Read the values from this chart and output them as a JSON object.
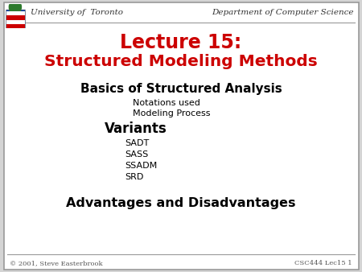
{
  "bg_color": "#d4d4d4",
  "slide_bg": "#ffffff",
  "border_color": "#999999",
  "header_line_color": "#999999",
  "univ_text": "University of  Toronto",
  "dept_text": "Department of Computer Science",
  "title_line1": "Lecture 15:",
  "title_line2": "Structured Modeling Methods",
  "title_color": "#cc0000",
  "heading1": "Basics of Structured Analysis",
  "heading1_color": "#000000",
  "sub1a": "Notations used",
  "sub1b": "Modeling Process",
  "sub_color": "#000000",
  "heading2": "Variants",
  "heading2_color": "#000000",
  "sub2a": "SADT",
  "sub2b": "SASS",
  "sub2c": "SSADM",
  "sub2d": "SRD",
  "heading3": "Advantages and Disadvantages",
  "heading3_color": "#000000",
  "footer_left": "© 2001, Steve Easterbrook",
  "footer_right": "CSC444 Lec15 1",
  "footer_color": "#555555",
  "header_color": "#333333"
}
